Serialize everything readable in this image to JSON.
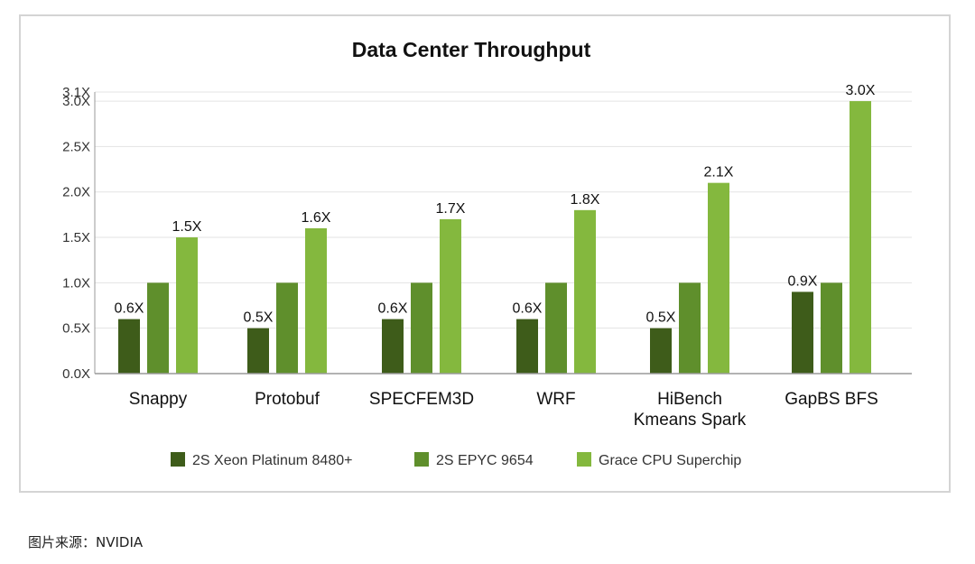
{
  "chart_data": {
    "type": "bar",
    "title": "Data Center Throughput",
    "xlabel": "",
    "ylabel": "",
    "categories": [
      [
        "Snappy"
      ],
      [
        "Protobuf"
      ],
      [
        "SPECFEM3D"
      ],
      [
        "WRF"
      ],
      [
        "HiBench",
        "Kmeans Spark"
      ],
      [
        "GapBS BFS"
      ]
    ],
    "series": [
      {
        "name": "2S Xeon Platinum 8480+",
        "color": "#3e5c1a",
        "values": [
          0.6,
          0.5,
          0.6,
          0.6,
          0.5,
          0.9
        ],
        "labels": [
          "0.6X",
          "0.5X",
          "0.6X",
          "0.6X",
          "0.5X",
          "0.9X"
        ]
      },
      {
        "name": "2S EPYC 9654",
        "color": "#5f8f2c",
        "values": [
          1.0,
          1.0,
          1.0,
          1.0,
          1.0,
          1.0
        ],
        "labels": [
          "",
          "",
          "",
          "",
          "",
          ""
        ]
      },
      {
        "name": "Grace CPU Superchip",
        "color": "#84b83e",
        "values": [
          1.5,
          1.6,
          1.7,
          1.8,
          2.1,
          3.0
        ],
        "labels": [
          "1.5X",
          "1.6X",
          "1.7X",
          "1.8X",
          "2.1X",
          "3.0X"
        ]
      }
    ],
    "yticks": [
      0.0,
      0.5,
      1.0,
      1.5,
      2.0,
      2.5,
      3.0,
      3.1
    ],
    "ytick_labels": [
      "0.0X",
      "0.5X",
      "1.0X",
      "1.5X",
      "2.0X",
      "2.5X",
      "3.0X",
      "3.1X"
    ],
    "ylim": [
      0,
      3.1
    ],
    "grid": true,
    "legend_position": "bottom"
  },
  "caption": "图片来源：NVIDIA"
}
